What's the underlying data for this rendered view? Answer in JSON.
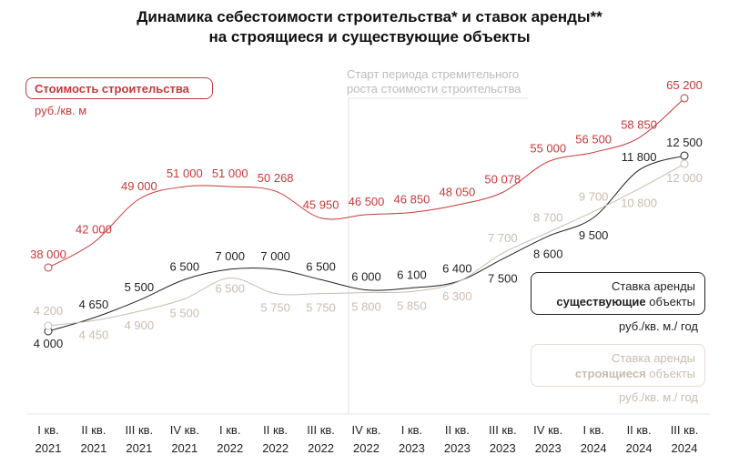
{
  "chart_data": {
    "type": "line",
    "title": [
      "Динамика себестоимости строительства* и ставок аренды**",
      "на строящиеся и существующие объекты"
    ],
    "categories": [
      [
        "I кв.",
        "2021"
      ],
      [
        "II кв.",
        "2021"
      ],
      [
        "III кв.",
        "2021"
      ],
      [
        "IV кв.",
        "2021"
      ],
      [
        "I кв.",
        "2022"
      ],
      [
        "II кв.",
        "2022"
      ],
      [
        "III кв.",
        "2022"
      ],
      [
        "IV кв.",
        "2022"
      ],
      [
        "I кв.",
        "2023"
      ],
      [
        "II кв.",
        "2023"
      ],
      [
        "III кв.",
        "2023"
      ],
      [
        "IV кв.",
        "2023"
      ],
      [
        "I кв.",
        "2024"
      ],
      [
        "II кв.",
        "2024"
      ],
      [
        "III кв.",
        "2024"
      ]
    ],
    "series": [
      {
        "name": "Стоимость строительства",
        "unit": "руб./кв. м",
        "color": "#c8383a",
        "values": [
          38000,
          42000,
          49000,
          51000,
          51000,
          50268,
          45950,
          46500,
          46850,
          48050,
          50078,
          55000,
          56500,
          58850,
          65200
        ],
        "labels": [
          "38 000",
          "42 000",
          "49 000",
          "51 000",
          "51 000",
          "50 268",
          "45 950",
          "46 500",
          "46 850",
          "48 050",
          "50 078",
          "55 000",
          "56 500",
          "58 850",
          "65 200"
        ]
      },
      {
        "name": "Ставка аренды существующие объекты",
        "unit": "руб./кв. м./ год",
        "color": "#222222",
        "values": [
          4000,
          4650,
          5500,
          6500,
          7000,
          7000,
          6500,
          6000,
          6100,
          6400,
          7500,
          8600,
          9500,
          11800,
          12500
        ],
        "labels": [
          "4 000",
          "4 650",
          "5 500",
          "6 500",
          "7 000",
          "7 000",
          "6 500",
          "6 000",
          "6 100",
          "6 400",
          "7 500",
          "8 600",
          "9 500",
          "11 800",
          "12 500"
        ]
      },
      {
        "name": "Ставка аренды строящиеся объекты",
        "unit": "руб./кв. м./ год",
        "color": "#c9bcae",
        "values": [
          4200,
          4450,
          4900,
          5500,
          6500,
          5750,
          5750,
          5800,
          5850,
          6300,
          7700,
          8700,
          9700,
          10800,
          12000
        ],
        "labels": [
          "4 200",
          "4 450",
          "4 900",
          "5 500",
          "6 500",
          "5 750",
          "5 750",
          "5 800",
          "5 850",
          "6 300",
          "7 700",
          "8 700",
          "9 700",
          "10 800",
          "12 000"
        ]
      }
    ],
    "annotation": [
      "Старт периода стремительного",
      "роста стоимости строительства"
    ],
    "legend": {
      "cost": "Стоимость строительства",
      "cost_unit": "руб./кв. м",
      "existing_line1": "Ставка аренды",
      "existing_bold": "существующие",
      "existing_rest": " объекты",
      "existing_unit": "руб./кв. м./ год",
      "building_line1": "Ставка аренды",
      "building_bold": "строящиеся",
      "building_rest": " объекты",
      "building_unit": "руб./кв. м./ год"
    }
  }
}
